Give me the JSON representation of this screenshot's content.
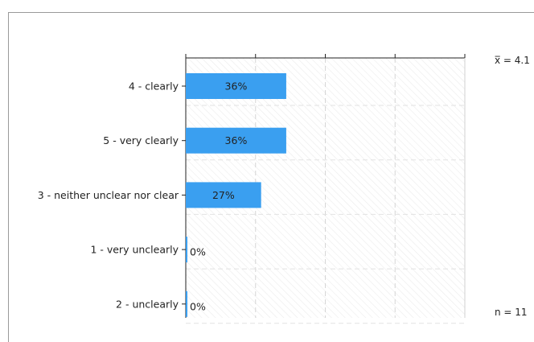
{
  "chart_data": {
    "type": "bar",
    "orientation": "horizontal",
    "categories": [
      "4 - clearly",
      "5 - very clearly",
      "3 - neither unclear nor clear",
      "1 - very unclearly",
      "2 - unclearly"
    ],
    "values": [
      36,
      36,
      27,
      0,
      0
    ],
    "value_labels": [
      "36%",
      "36%",
      "27%",
      "0%",
      "0%"
    ],
    "xlim": [
      0,
      100
    ],
    "grid": true,
    "bar_color": "#3a9ff0",
    "mean_label": "x̅ = 4.1",
    "n_label": "n = 11"
  }
}
